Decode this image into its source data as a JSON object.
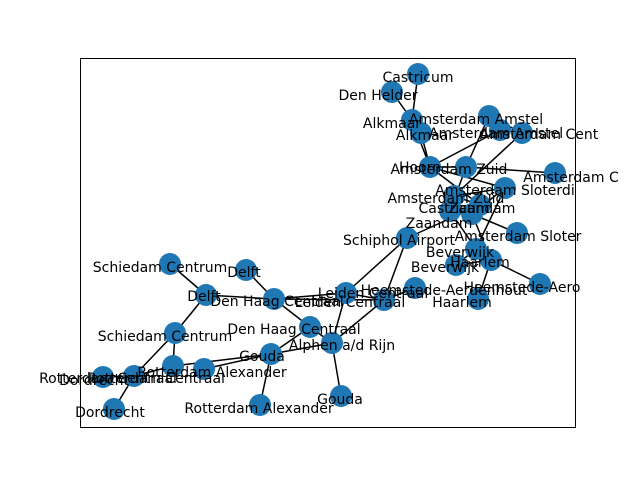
{
  "graph": {
    "node_color": "#1f77b4",
    "edge_color": "#000000",
    "nodes": [
      {
        "id": "castricum_top",
        "label": "Castricum"
      },
      {
        "id": "den_helder",
        "label": "Den Helder"
      },
      {
        "id": "alkmaar_a",
        "label": "Alkmaar"
      },
      {
        "id": "alkmaar_b",
        "label": "Alkmaar"
      },
      {
        "id": "amsterdam_amstel_a",
        "label": "Amsterdam Amstel"
      },
      {
        "id": "amsterdam_amstel_b",
        "label": "Amsterdam Amstel"
      },
      {
        "id": "amsterdam_centraal",
        "label": "Amsterdam Cent"
      },
      {
        "id": "hoorn",
        "label": "Hoorn"
      },
      {
        "id": "amsterdam_zuid_a",
        "label": "Amsterdam Zuid"
      },
      {
        "id": "amsterdam_c",
        "label": "Amsterdam C"
      },
      {
        "id": "amsterdam_zuid_b",
        "label": "Amsterdam Zuid"
      },
      {
        "id": "amsterdam_sloterdijk_a",
        "label": "Amsterdam Sloterdi"
      },
      {
        "id": "castricum_mid",
        "label": "Castricum"
      },
      {
        "id": "zaandam_a",
        "label": "Zaandam"
      },
      {
        "id": "zaandam_b",
        "label": "Zaandam"
      },
      {
        "id": "schiphol",
        "label": "Schiphol Airport"
      },
      {
        "id": "amsterdam_sloterdijk_b",
        "label": "Amsterdam Sloter"
      },
      {
        "id": "beverwijk_a",
        "label": "Beverwijk"
      },
      {
        "id": "beverwijk_b",
        "label": "Beverwijk"
      },
      {
        "id": "haarlem_a",
        "label": "Haarlem"
      },
      {
        "id": "heemstede_a",
        "label": "Heemstede-Aerdenhout"
      },
      {
        "id": "heemstede_b",
        "label": "Heemstede-Aero"
      },
      {
        "id": "haarlem_b",
        "label": "Haarlem"
      },
      {
        "id": "leiden_a",
        "label": "Leiden Centraal"
      },
      {
        "id": "leiden_b",
        "label": "Leiden Centraal"
      },
      {
        "id": "schiedam_a",
        "label": "Schiedam Centrum"
      },
      {
        "id": "delft_a",
        "label": "Delft"
      },
      {
        "id": "delft_b",
        "label": "Delft"
      },
      {
        "id": "den_haag_a",
        "label": "Den Haag Centraal"
      },
      {
        "id": "den_haag_b",
        "label": "Den Haag Centraal"
      },
      {
        "id": "alphen",
        "label": "Alphen a/d Rijn"
      },
      {
        "id": "gouda_a",
        "label": "Gouda"
      },
      {
        "id": "gouda_b",
        "label": "Gouda"
      },
      {
        "id": "schiedam_b",
        "label": "Schiedam Centrum"
      },
      {
        "id": "rotterdam_alexander_a",
        "label": "Rotterdam Alexander"
      },
      {
        "id": "rotterdam_alexander_b",
        "label": "Rotterdam Alexander"
      },
      {
        "id": "rotterdam_centraal_a",
        "label": "Rotterdam Centraal"
      },
      {
        "id": "rotterdam_centraal_b",
        "label": "Rotterdam Centraal"
      },
      {
        "id": "dordrecht_a",
        "label": "Dordrecht"
      },
      {
        "id": "dordrecht_b",
        "label": "Dordrecht"
      }
    ],
    "edges": [
      [
        "castricum_top",
        "alkmaar_a"
      ],
      [
        "den_helder",
        "alkmaar_a"
      ],
      [
        "alkmaar_a",
        "alkmaar_b"
      ],
      [
        "alkmaar_b",
        "hoorn"
      ],
      [
        "alkmaar_a",
        "hoorn"
      ],
      [
        "amsterdam_amstel_a",
        "amsterdam_centraal"
      ],
      [
        "amsterdam_amstel_a",
        "amsterdam_zuid_a"
      ],
      [
        "amsterdam_amstel_b",
        "hoorn"
      ],
      [
        "amsterdam_centraal",
        "amsterdam_zuid_b"
      ],
      [
        "hoorn",
        "amsterdam_zuid_a"
      ],
      [
        "hoorn",
        "zaandam_a"
      ],
      [
        "hoorn",
        "amsterdam_sloterdijk_a"
      ],
      [
        "amsterdam_zuid_a",
        "amsterdam_c"
      ],
      [
        "amsterdam_zuid_a",
        "castricum_mid"
      ],
      [
        "amsterdam_zuid_b",
        "amsterdam_sloterdijk_a"
      ],
      [
        "amsterdam_zuid_b",
        "zaandam_a"
      ],
      [
        "amsterdam_sloterdijk_a",
        "beverwijk_a"
      ],
      [
        "amsterdam_sloterdijk_a",
        "zaandam_b"
      ],
      [
        "castricum_mid",
        "zaandam_a"
      ],
      [
        "castricum_mid",
        "beverwijk_a"
      ],
      [
        "zaandam_a",
        "zaandam_b"
      ],
      [
        "zaandam_a",
        "schiphol"
      ],
      [
        "zaandam_b",
        "amsterdam_sloterdijk_b"
      ],
      [
        "zaandam_b",
        "haarlem_a"
      ],
      [
        "beverwijk_a",
        "beverwijk_b"
      ],
      [
        "beverwijk_b",
        "haarlem_a"
      ],
      [
        "haarlem_a",
        "heemstede_b"
      ],
      [
        "haarlem_a",
        "haarlem_b"
      ],
      [
        "schiphol",
        "leiden_a"
      ],
      [
        "schiphol",
        "leiden_b"
      ],
      [
        "leiden_a",
        "leiden_b"
      ],
      [
        "heemstede_a",
        "leiden_b"
      ],
      [
        "leiden_a",
        "den_haag_a"
      ],
      [
        "leiden_b",
        "den_haag_a"
      ],
      [
        "leiden_a",
        "alphen"
      ],
      [
        "leiden_b",
        "alphen"
      ],
      [
        "den_haag_a",
        "den_haag_b"
      ],
      [
        "den_haag_a",
        "delft_a"
      ],
      [
        "den_haag_a",
        "delft_b"
      ],
      [
        "den_haag_b",
        "alphen"
      ],
      [
        "den_haag_b",
        "gouda_a"
      ],
      [
        "alphen",
        "gouda_a"
      ],
      [
        "alphen",
        "gouda_b"
      ],
      [
        "schiedam_a",
        "delft_b"
      ],
      [
        "delft_b",
        "schiedam_b"
      ],
      [
        "gouda_a",
        "rotterdam_alexander_a"
      ],
      [
        "gouda_a",
        "rotterdam_alexander_b"
      ],
      [
        "gouda_a",
        "rotterdam_centraal_a"
      ],
      [
        "schiedam_b",
        "rotterdam_centraal_a"
      ],
      [
        "schiedam_b",
        "rotterdam_centraal_b"
      ],
      [
        "rotterdam_centraal_a",
        "rotterdam_centraal_b"
      ],
      [
        "rotterdam_centraal_b",
        "dordrecht_a"
      ],
      [
        "rotterdam_centraal_b",
        "dordrecht_b"
      ]
    ]
  }
}
